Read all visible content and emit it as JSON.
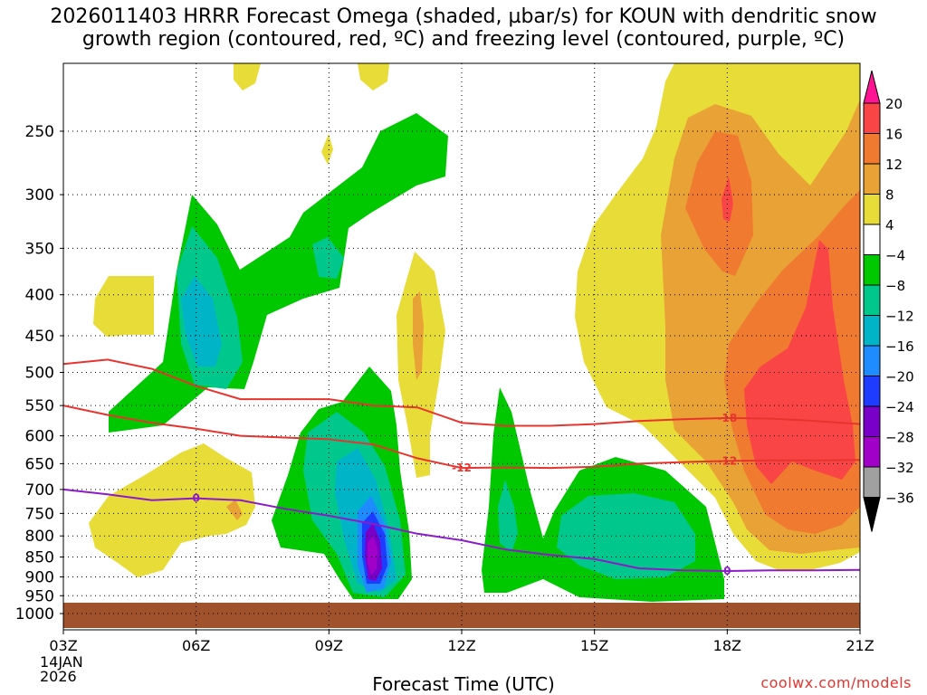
{
  "title_line1": "2026011403 HRRR Forecast Omega (shaded, µbar/s) for KOUN with dendritic snow",
  "title_line2": "growth region (contoured, red, ºC) and freezing level (contoured, purple, ºC)",
  "chart_data": {
    "type": "contour",
    "title": "2026011403 HRRR Forecast Omega (shaded, µbar/s) for KOUN with dendritic snow growth region (contoured, red, ºC) and freezing level (contoured, purple, ºC)",
    "xlabel": "Forecast Time (UTC)",
    "ylabel": "",
    "x_ticks": [
      "03Z",
      "06Z",
      "09Z",
      "12Z",
      "15Z",
      "18Z",
      "21Z"
    ],
    "x_hours": [
      3,
      6,
      9,
      12,
      15,
      18,
      21
    ],
    "x_range": [
      3,
      21
    ],
    "date_label": [
      "14JAN",
      "2026"
    ],
    "y_ticks": [
      250,
      300,
      350,
      400,
      450,
      500,
      550,
      600,
      650,
      700,
      750,
      800,
      850,
      900,
      950,
      1000
    ],
    "y_range": [
      200,
      1000
    ],
    "colorbar": {
      "ticks": [
        "20",
        "16",
        "12",
        "8",
        "4",
        "−4",
        "−8",
        "−12",
        "−16",
        "−20",
        "−24",
        "−28",
        "−32",
        "−36"
      ],
      "colors": [
        "#ff1493",
        "#f94545",
        "#f07a2f",
        "#e8a235",
        "#e8dc38",
        "#ffffff",
        "#00c800",
        "#00c88c",
        "#00b4c8",
        "#1e8cff",
        "#1e3cff",
        "#7800c8",
        "#a000c8",
        "#a0a0a0",
        "#000000"
      ]
    },
    "contours": [
      {
        "label": "-18",
        "color": "#e8342f",
        "hours": [
          3,
          4,
          5,
          6,
          7,
          9,
          10,
          11,
          12,
          13,
          14,
          15,
          16,
          17,
          18,
          19,
          20,
          21
        ],
        "pressure": [
          488,
          482,
          495,
          520,
          540,
          540,
          550,
          553,
          578,
          583,
          583,
          580,
          575,
          572,
          570,
          571,
          575,
          580
        ]
      },
      {
        "label": "-12",
        "color": "#e8342f",
        "hours": [
          3,
          4,
          5,
          6,
          7,
          8,
          9,
          10,
          11,
          12,
          13,
          14,
          15,
          16,
          17,
          18,
          19,
          20,
          21
        ],
        "pressure": [
          550,
          565,
          578,
          588,
          600,
          603,
          606,
          615,
          640,
          658,
          657,
          658,
          656,
          650,
          647,
          645,
          644,
          644,
          643
        ]
      },
      {
        "label": "0",
        "color": "#8c1ac8",
        "hours": [
          3,
          4,
          5,
          6,
          7,
          8,
          9,
          10,
          11,
          12,
          13,
          14,
          15,
          16,
          17,
          18,
          19,
          20,
          21
        ],
        "pressure": [
          700,
          710,
          722,
          718,
          722,
          740,
          755,
          773,
          795,
          810,
          832,
          845,
          855,
          878,
          883,
          885,
          883,
          883,
          882
        ]
      }
    ],
    "bottom_fill": {
      "from_pressure": 968,
      "color": "#a0522d"
    }
  },
  "footer": {
    "xlabel": "Forecast Time (UTC)",
    "credit": "coolwx.com/models",
    "date_line1": "14JAN",
    "date_line2": "2026"
  }
}
